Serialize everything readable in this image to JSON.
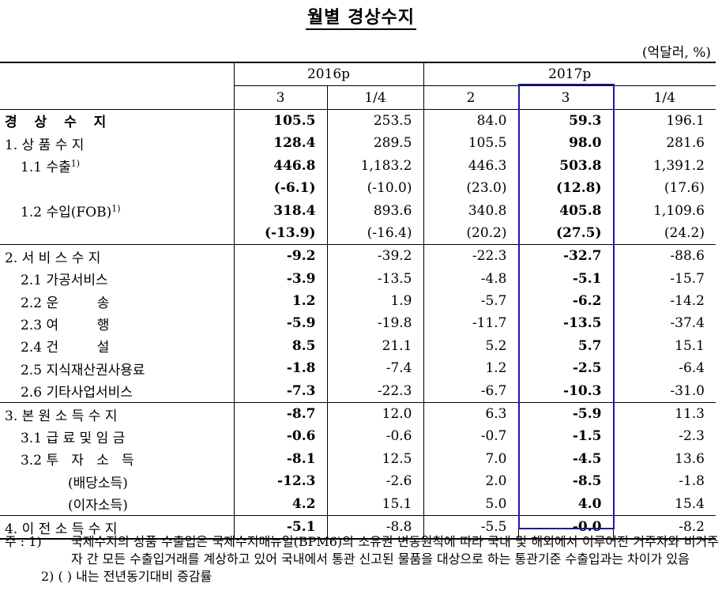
{
  "title": "월별 경상수지",
  "unit": "(억달러, %)",
  "columns": {
    "groups": [
      "2016p",
      "2017p"
    ],
    "sub": [
      "3",
      "1/4",
      "2",
      "3",
      "1/4"
    ]
  },
  "rows": [
    {
      "label": "경 상 수 지",
      "values": [
        "105.5",
        "253.5",
        "84.0",
        "59.3",
        "196.1"
      ]
    },
    {
      "label": "1. 상 품 수 지",
      "values": [
        "128.4",
        "289.5",
        "105.5",
        "98.0",
        "281.6"
      ]
    },
    {
      "label": "1.1 수출",
      "sup": "1)",
      "values": [
        "446.8",
        "1,183.2",
        "446.3",
        "503.8",
        "1,391.2"
      ]
    },
    {
      "label": "",
      "values": [
        "(-6.1)",
        "(-10.0)",
        "(23.0)",
        "(12.8)",
        "(17.6)"
      ]
    },
    {
      "label": "1.2 수입(FOB)",
      "sup": "1)",
      "values": [
        "318.4",
        "893.6",
        "340.8",
        "405.8",
        "1,109.6"
      ]
    },
    {
      "label": "",
      "values": [
        "(-13.9)",
        "(-16.4)",
        "(20.2)",
        "(27.5)",
        "(24.2)"
      ]
    },
    {
      "label": "2. 서 비 스 수 지",
      "values": [
        "-9.2",
        "-39.2",
        "-22.3",
        "-32.7",
        "-88.6"
      ]
    },
    {
      "label": "2.1 가공서비스",
      "values": [
        "-3.9",
        "-13.5",
        "-4.8",
        "-5.1",
        "-15.7"
      ]
    },
    {
      "label": "2.2 운         송",
      "values": [
        "1.2",
        "1.9",
        "-5.7",
        "-6.2",
        "-14.2"
      ]
    },
    {
      "label": "2.3 여         행",
      "values": [
        "-5.9",
        "-19.8",
        "-11.7",
        "-13.5",
        "-37.4"
      ]
    },
    {
      "label": "2.4 건         설",
      "values": [
        "8.5",
        "21.1",
        "5.2",
        "5.7",
        "15.1"
      ]
    },
    {
      "label": "2.5 지식재산권사용료",
      "values": [
        "-1.8",
        "-7.4",
        "1.2",
        "-2.5",
        "-6.4"
      ]
    },
    {
      "label": "2.6 기타사업서비스",
      "values": [
        "-7.3",
        "-22.3",
        "-6.7",
        "-10.3",
        "-31.0"
      ]
    },
    {
      "label": "3. 본 원 소 득 수 지",
      "values": [
        "-8.7",
        "12.0",
        "6.3",
        "-5.9",
        "11.3"
      ]
    },
    {
      "label": "3.1 급 료 및 임 금",
      "values": [
        "-0.6",
        "-0.6",
        "-0.7",
        "-1.5",
        "-2.3"
      ]
    },
    {
      "label": "3.2 투   자   소   득",
      "values": [
        "-8.1",
        "12.5",
        "7.0",
        "-4.5",
        "13.6"
      ]
    },
    {
      "label": "(배당소득)",
      "values": [
        "-12.3",
        "-2.6",
        "2.0",
        "-8.5",
        "-1.8"
      ]
    },
    {
      "label": "(이자소득)",
      "values": [
        "4.2",
        "15.1",
        "5.0",
        "4.0",
        "15.4"
      ]
    },
    {
      "label": "4. 이 전 소 득 수 지",
      "values": [
        "-5.1",
        "-8.8",
        "-5.5",
        "-0.0",
        "-8.2"
      ]
    }
  ],
  "notes": {
    "note1_prefix": "주 : 1)",
    "note1_text": "국제수지의 상품 수출입은 국제수지매뉴얼(BPM6)의 소유권 변동원칙에 따라 국내 및 해외에서 이루어진 거주자와 비거주자 간 모든 수출입거래를 계상하고 있어 국내에서 통관 신고된 물품을 대상으로 하는 통관기준 수출입과는 차이가 있음",
    "note2": "2) (   ) 내는 전년동기대비 증감률"
  },
  "colors": {
    "highlight_border": "#1a1aa6"
  }
}
